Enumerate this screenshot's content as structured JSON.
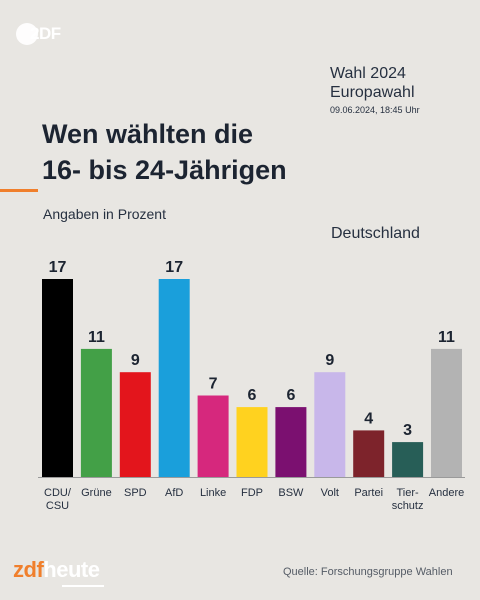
{
  "branding": {
    "top_logo": "2DF",
    "bottom_logo_left": "zdf",
    "bottom_logo_right": "heute"
  },
  "election": {
    "title": "Wahl 2024",
    "name": "Europawahl",
    "timestamp": "09.06.2024, 18:45 Uhr"
  },
  "headline": {
    "line1": "Wen wählten die",
    "line2": "16- bis 24-Jährigen"
  },
  "subtitle": "Angaben in Prozent",
  "region": "Deutschland",
  "source": "Quelle: Forschungsgruppe Wahlen",
  "colors": {
    "accent": "#f07f2c",
    "background": "#e8e6e2"
  },
  "chart_data": {
    "type": "bar",
    "categories": [
      [
        "CDU/",
        "CSU"
      ],
      [
        "Grüne"
      ],
      [
        "SPD"
      ],
      [
        "AfD"
      ],
      [
        "Linke"
      ],
      [
        "FDP"
      ],
      [
        "BSW"
      ],
      [
        "Volt"
      ],
      [
        "Partei"
      ],
      [
        "Tier-",
        "schutz"
      ],
      [
        "Andere"
      ]
    ],
    "values": [
      17,
      11,
      9,
      17,
      7,
      6,
      6,
      9,
      4,
      3,
      11
    ],
    "colors": [
      "#000000",
      "#43a047",
      "#e3151c",
      "#1a9fdb",
      "#d6287d",
      "#ffd21f",
      "#7b1070",
      "#c8b7ea",
      "#7d232b",
      "#275e57",
      "#b3b3b3"
    ],
    "ylim": [
      0,
      17
    ],
    "grid": false,
    "legend": "none"
  }
}
